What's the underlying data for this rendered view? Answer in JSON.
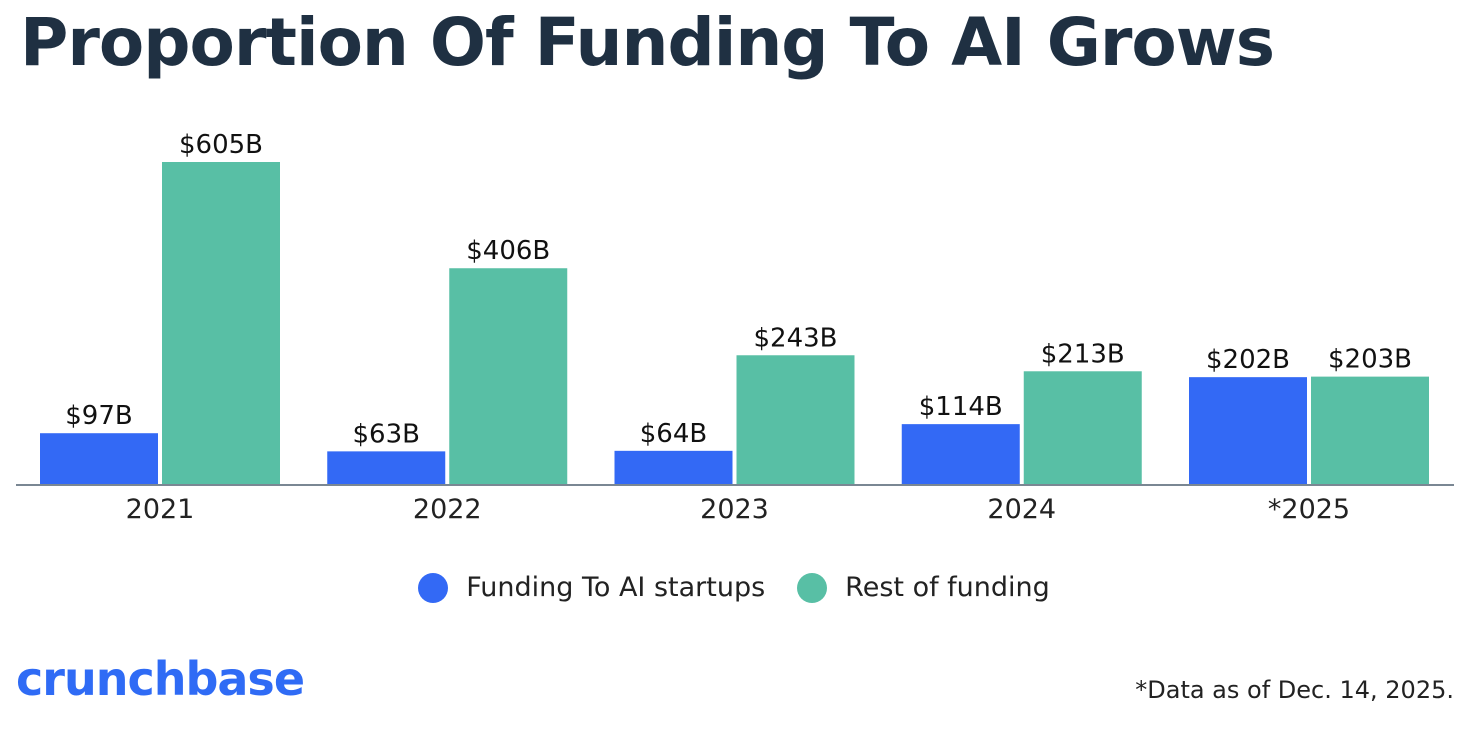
{
  "chart_data": {
    "type": "bar",
    "title": "Proportion Of Funding To AI Grows",
    "categories": [
      "2021",
      "2022",
      "2023",
      "2024",
      "*2025"
    ],
    "series": [
      {
        "name": "Funding To AI startups",
        "color": "#3369f5",
        "values": [
          97,
          63,
          64,
          114,
          202
        ],
        "labels": [
          "$97B",
          "$63B",
          "$64B",
          "$114B",
          "$202B"
        ]
      },
      {
        "name": "Rest of funding",
        "color": "#58bfa5",
        "values": [
          605,
          406,
          243,
          213,
          203
        ],
        "labels": [
          "$605B",
          "$406B",
          "$243B",
          "$213B",
          "$203B"
        ]
      }
    ],
    "xlabel": "",
    "ylabel": "",
    "ylim": [
      0,
      605
    ],
    "grid": false,
    "legend_position": "bottom-center"
  },
  "brand": {
    "logo_text": "crunchbase",
    "logo_color": "#2f6bf5"
  },
  "footnote": "*Data as of Dec. 14, 2025."
}
